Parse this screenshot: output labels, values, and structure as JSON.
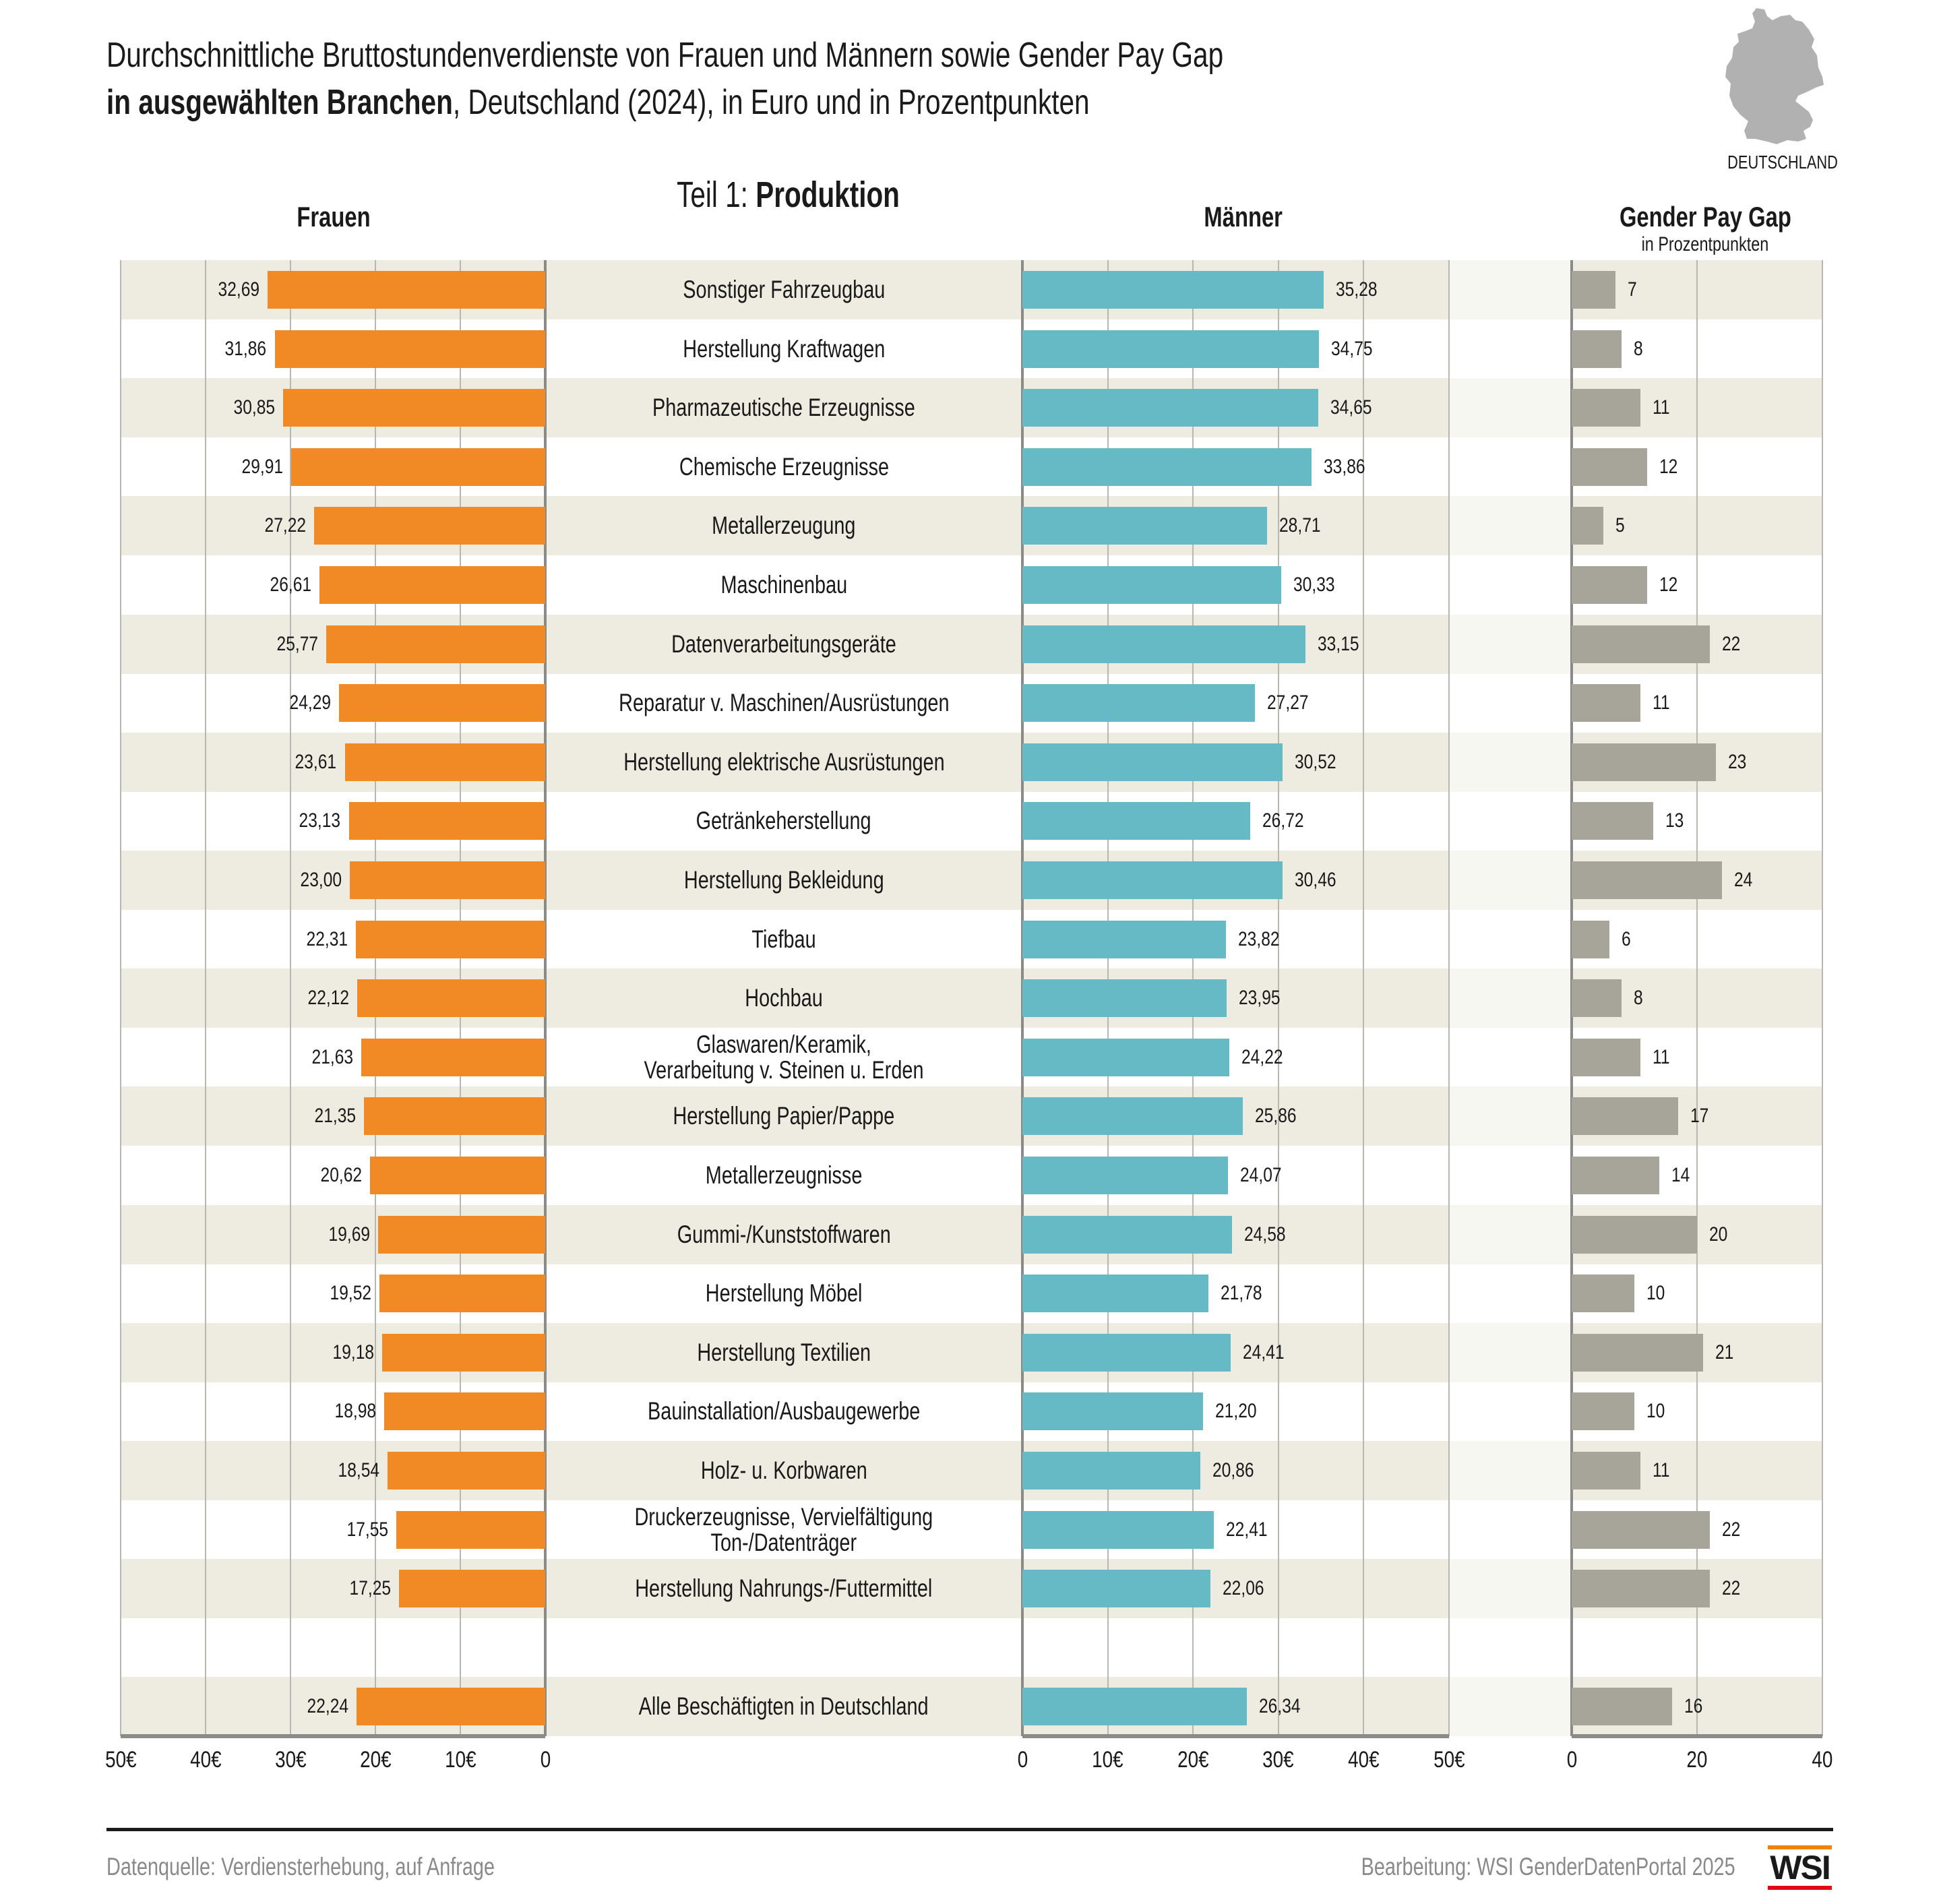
{
  "header": {
    "title_line1": "Durchschnittliche Bruttostundenverdienste von Frauen und Männern sowie Gender Pay Gap",
    "title_line2_bold": "in ausgewählten Branchen",
    "title_line2_rest": ", Deutschland (2024), in Euro und in Prozentpunkten",
    "section_prefix": "Teil 1: ",
    "section_bold": "Produktion",
    "map_label": "DEUTSCHLAND",
    "map_icon": "germany-map-icon"
  },
  "columns": {
    "frauen": "Frauen",
    "maenner": "Männer",
    "gpg": "Gender Pay Gap",
    "gpg_sub": "in Prozentpunkten"
  },
  "colors": {
    "frauen": "#F18A25",
    "maenner": "#65BAC6",
    "gpg": "#A7A599",
    "row_stripe": "#EEEBE0"
  },
  "chart_data": {
    "type": "bar",
    "title": "Durchschnittliche Bruttostundenverdienste von Frauen und Männern sowie Gender Pay Gap in ausgewählten Branchen, Deutschland (2024), in Euro und in Prozentpunkten",
    "subtitle": "Teil 1: Produktion",
    "categories": [
      "Sonstiger Fahrzeugbau",
      "Herstellung Kraftwagen",
      "Pharmazeutische Erzeugnisse",
      "Chemische Erzeugnisse",
      "Metallerzeugung",
      "Maschinenbau",
      "Datenverarbeitungsgeräte",
      "Reparatur v. Maschinen/Ausrüstungen",
      "Herstellung elektrische Ausrüstungen",
      "Getränkeherstellung",
      "Herstellung Bekleidung",
      "Tiefbau",
      "Hochbau",
      "Glaswaren/Keramik,\nVerarbeitung v. Steinen u. Erden",
      "Herstellung Papier/Pappe",
      "Metallerzeugnisse",
      "Gummi-/Kunststoffwaren",
      "Herstellung Möbel",
      "Herstellung Textilien",
      "Bauinstallation/Ausbaugewerbe",
      "Holz- u. Korbwaren",
      "Druckerzeugnisse, Vervielfältigung\nTon-/Datenträger",
      "Herstellung Nahrungs-/Futtermittel"
    ],
    "series": [
      {
        "name": "Frauen",
        "unit": "€",
        "values": [
          32.69,
          31.86,
          30.85,
          29.91,
          27.22,
          26.61,
          25.77,
          24.29,
          23.61,
          23.13,
          23.0,
          22.31,
          22.12,
          21.63,
          21.35,
          20.62,
          19.69,
          19.52,
          19.18,
          18.98,
          18.54,
          17.55,
          17.25
        ],
        "labels": [
          "32,69",
          "31,86",
          "30,85",
          "29,91",
          "27,22",
          "26,61",
          "25,77",
          "24,29",
          "23,61",
          "23,13",
          "23,00",
          "22,31",
          "22,12",
          "21,63",
          "21,35",
          "20,62",
          "19,69",
          "19,52",
          "19,18",
          "18,98",
          "18,54",
          "17,55",
          "17,25"
        ]
      },
      {
        "name": "Männer",
        "unit": "€",
        "values": [
          35.28,
          34.75,
          34.65,
          33.86,
          28.71,
          30.33,
          33.15,
          27.27,
          30.52,
          26.72,
          30.46,
          23.82,
          23.95,
          24.22,
          25.86,
          24.07,
          24.58,
          21.78,
          24.41,
          21.2,
          20.86,
          22.41,
          22.06
        ],
        "labels": [
          "35,28",
          "34,75",
          "34,65",
          "33,86",
          "28,71",
          "30,33",
          "33,15",
          "27,27",
          "30,52",
          "26,72",
          "30,46",
          "23,82",
          "23,95",
          "24,22",
          "25,86",
          "24,07",
          "24,58",
          "21,78",
          "24,41",
          "21,20",
          "20,86",
          "22,41",
          "22,06"
        ]
      },
      {
        "name": "Gender Pay Gap",
        "unit": "Prozentpunkte",
        "values": [
          7,
          8,
          11,
          12,
          5,
          12,
          22,
          11,
          23,
          13,
          24,
          6,
          8,
          11,
          17,
          14,
          20,
          10,
          21,
          10,
          11,
          22,
          22
        ],
        "labels": [
          "7",
          "8",
          "11",
          "12",
          "5",
          "12",
          "22",
          "11",
          "23",
          "13",
          "24",
          "6",
          "8",
          "11",
          "17",
          "14",
          "20",
          "10",
          "21",
          "10",
          "11",
          "22",
          "22"
        ]
      }
    ],
    "total": {
      "category": "Alle Beschäftigten in Deutschland",
      "frauen": 22.24,
      "frauen_label": "22,24",
      "maenner": 26.34,
      "maenner_label": "26,34",
      "gpg": 16,
      "gpg_label": "16"
    },
    "axes": {
      "frauen": {
        "range": [
          0,
          50
        ],
        "direction": "reversed",
        "ticks": [
          50,
          40,
          30,
          20,
          10,
          0
        ],
        "tick_labels": [
          "50€",
          "40€",
          "30€",
          "20€",
          "10€",
          "0"
        ]
      },
      "maenner": {
        "range": [
          0,
          50
        ],
        "ticks": [
          0,
          10,
          20,
          30,
          40,
          50
        ],
        "tick_labels": [
          "0",
          "10€",
          "20€",
          "30€",
          "40€",
          "50€"
        ]
      },
      "gpg": {
        "range": [
          0,
          40
        ],
        "ticks": [
          0,
          20,
          40
        ],
        "tick_labels": [
          "0",
          "20",
          "40"
        ]
      }
    },
    "grid": true,
    "xlabel": "",
    "ylabel": ""
  },
  "footer": {
    "source": "Datenquelle: Verdiensterhebung, auf Anfrage",
    "credit": "Bearbeitung: WSI GenderDatenPortal 2025",
    "logo_text": "WSI"
  }
}
